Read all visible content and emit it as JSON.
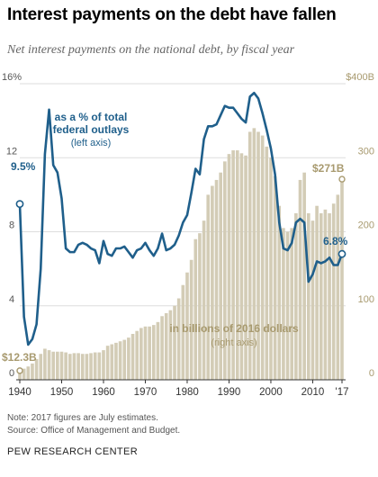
{
  "title": "Interest payments on the debt have fallen",
  "subtitle": "Net interest payments on the national debt, by fiscal year",
  "notes": {
    "note": "Note: 2017 figures are July estimates.",
    "source": "Source: Office of Management and Budget.",
    "org": "PEW RESEARCH CENTER"
  },
  "colors": {
    "line": "#1f5f8b",
    "bar": "#d3ccb6",
    "bar_label": "#a89a6f",
    "grid": "#dddddd"
  },
  "chart_data": {
    "type": "bar+line",
    "x_range": [
      1940,
      2017
    ],
    "x_ticks": [
      "1940",
      "1950",
      "1960",
      "1970",
      "1980",
      "1990",
      "2000",
      "2010",
      "'17"
    ],
    "left_axis": {
      "ylim": [
        0,
        16
      ],
      "ticks": [
        "0",
        "4",
        "8",
        "12",
        "16%"
      ]
    },
    "right_axis": {
      "ylim": [
        0,
        400
      ],
      "ticks": [
        "0",
        "100",
        "200",
        "300",
        "$400B"
      ]
    },
    "series": [
      {
        "name": "as a % of total federal outlays",
        "axis": "left",
        "type": "line",
        "x": [
          1940,
          1941,
          1942,
          1943,
          1944,
          1945,
          1946,
          1947,
          1948,
          1949,
          1950,
          1951,
          1952,
          1953,
          1954,
          1955,
          1956,
          1957,
          1958,
          1959,
          1960,
          1961,
          1962,
          1963,
          1964,
          1965,
          1966,
          1967,
          1968,
          1969,
          1970,
          1971,
          1972,
          1973,
          1974,
          1975,
          1976,
          1977,
          1978,
          1979,
          1980,
          1981,
          1982,
          1983,
          1984,
          1985,
          1986,
          1987,
          1988,
          1989,
          1990,
          1991,
          1992,
          1993,
          1994,
          1995,
          1996,
          1997,
          1998,
          1999,
          2000,
          2001,
          2002,
          2003,
          2004,
          2005,
          2006,
          2007,
          2008,
          2009,
          2010,
          2011,
          2012,
          2013,
          2014,
          2015,
          2016,
          2017
        ],
        "values": [
          9.5,
          3.4,
          1.9,
          2.2,
          3.0,
          6.0,
          12.2,
          14.6,
          11.6,
          11.2,
          9.8,
          7.1,
          6.9,
          6.9,
          7.3,
          7.4,
          7.3,
          7.1,
          7.0,
          6.3,
          7.5,
          6.8,
          6.7,
          7.1,
          7.1,
          7.2,
          6.9,
          6.6,
          7.0,
          7.1,
          7.4,
          7.0,
          6.7,
          7.1,
          7.9,
          7.0,
          7.1,
          7.3,
          7.8,
          8.5,
          8.9,
          10.1,
          11.4,
          11.1,
          13.0,
          13.7,
          13.7,
          13.8,
          14.3,
          14.8,
          14.7,
          14.7,
          14.4,
          14.1,
          13.9,
          15.3,
          15.5,
          15.2,
          14.4,
          13.5,
          12.5,
          11.1,
          8.5,
          7.1,
          7.0,
          7.4,
          8.5,
          8.7,
          8.5,
          5.3,
          5.7,
          6.4,
          6.3,
          6.4,
          6.6,
          6.2,
          6.2,
          6.8
        ]
      },
      {
        "name": "in billions of 2016 dollars",
        "axis": "right",
        "type": "bar",
        "x": [
          1940,
          1941,
          1942,
          1943,
          1944,
          1945,
          1946,
          1947,
          1948,
          1949,
          1950,
          1951,
          1952,
          1953,
          1954,
          1955,
          1956,
          1957,
          1958,
          1959,
          1960,
          1961,
          1962,
          1963,
          1964,
          1965,
          1966,
          1967,
          1968,
          1969,
          1970,
          1971,
          1972,
          1973,
          1974,
          1975,
          1976,
          1977,
          1978,
          1979,
          1980,
          1981,
          1982,
          1983,
          1984,
          1985,
          1986,
          1987,
          1988,
          1989,
          1990,
          1991,
          1992,
          1993,
          1994,
          1995,
          1996,
          1997,
          1998,
          1999,
          2000,
          2001,
          2002,
          2003,
          2004,
          2005,
          2006,
          2007,
          2008,
          2009,
          2010,
          2011,
          2012,
          2013,
          2014,
          2015,
          2016,
          2017
        ],
        "values": [
          12.3,
          15,
          18,
          22,
          28,
          35,
          42,
          40,
          38,
          38,
          38,
          37,
          35,
          36,
          36,
          35,
          35,
          36,
          37,
          37,
          40,
          46,
          48,
          50,
          52,
          54,
          57,
          62,
          66,
          70,
          72,
          72,
          74,
          78,
          86,
          90,
          94,
          100,
          110,
          128,
          145,
          162,
          190,
          198,
          215,
          250,
          262,
          270,
          280,
          295,
          305,
          310,
          310,
          306,
          303,
          335,
          340,
          335,
          330,
          315,
          300,
          275,
          235,
          205,
          200,
          205,
          225,
          270,
          280,
          225,
          215,
          235,
          225,
          230,
          225,
          238,
          250,
          271
        ]
      }
    ],
    "annotations": [
      {
        "id": "line-label",
        "lines": [
          "as a % of total",
          "federal outlays"
        ],
        "sub": "(left axis)"
      },
      {
        "id": "bar-label",
        "lines": [
          "in billions of 2016 dollars"
        ],
        "sub": "(right axis)"
      },
      {
        "id": "line-start",
        "text": "9.5%"
      },
      {
        "id": "line-end",
        "text": "6.8%"
      },
      {
        "id": "bar-start",
        "text": "$12.3B"
      },
      {
        "id": "bar-end",
        "text": "$271B"
      }
    ]
  }
}
